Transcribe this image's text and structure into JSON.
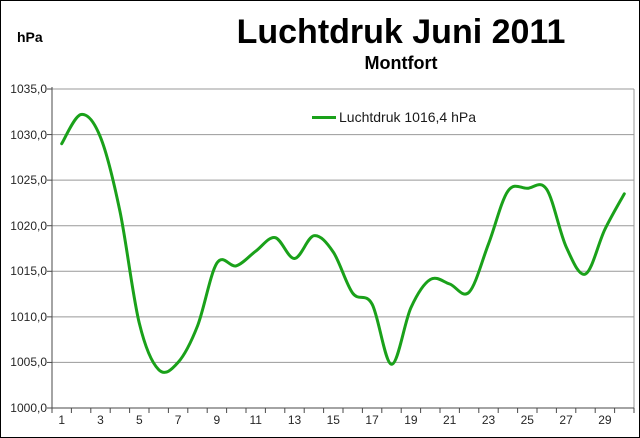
{
  "header": {
    "unit_label": "hPa",
    "title": "Luchtdruk Juni 2011",
    "subtitle": "Montfort"
  },
  "legend": {
    "label": "Luchtdruk 1016,4 hPa"
  },
  "colors": {
    "series_green": "#1aa11a",
    "gridline": "#999999",
    "axis": "#4a4a4a",
    "text": "#262626",
    "background": "#ffffff",
    "border": "#000000"
  },
  "chart_data": {
    "type": "line",
    "title": "Luchtdruk Juni 2011",
    "subtitle": "Montfort",
    "ylabel": "hPa",
    "legend_entries": [
      "Luchtdruk 1016,4 hPa"
    ],
    "legend_position": "top-center-inside",
    "grid": true,
    "smooth": true,
    "x": [
      1,
      2,
      3,
      4,
      5,
      6,
      7,
      8,
      9,
      10,
      11,
      12,
      13,
      14,
      15,
      16,
      17,
      18,
      19,
      20,
      21,
      22,
      23,
      24,
      25,
      26,
      27,
      28,
      29,
      30
    ],
    "values": [
      1029.0,
      1032.2,
      1029.7,
      1021.6,
      1009.3,
      1004.2,
      1005.0,
      1009.0,
      1015.9,
      1015.6,
      1017.2,
      1018.7,
      1016.4,
      1018.9,
      1017.1,
      1012.6,
      1011.4,
      1004.8,
      1011.0,
      1014.1,
      1013.6,
      1012.7,
      1018.0,
      1023.8,
      1024.1,
      1024.0,
      1017.7,
      1014.7,
      1019.6,
      1023.5
    ],
    "ylim": [
      1000,
      1035
    ],
    "ytick_step": 5,
    "ytick_labels": [
      "1035,0",
      "1030,0",
      "1025,0",
      "1020,0",
      "1015,0",
      "1010,0",
      "1005,0",
      "1000,0"
    ],
    "ytick_values": [
      1035,
      1030,
      1025,
      1020,
      1015,
      1010,
      1005,
      1000
    ],
    "xtick_labels": [
      "1",
      "3",
      "5",
      "7",
      "9",
      "11",
      "13",
      "15",
      "17",
      "19",
      "21",
      "23",
      "25",
      "27",
      "29"
    ],
    "xtick_days": [
      1,
      3,
      5,
      7,
      9,
      11,
      13,
      15,
      17,
      19,
      21,
      23,
      25,
      27,
      29
    ]
  }
}
